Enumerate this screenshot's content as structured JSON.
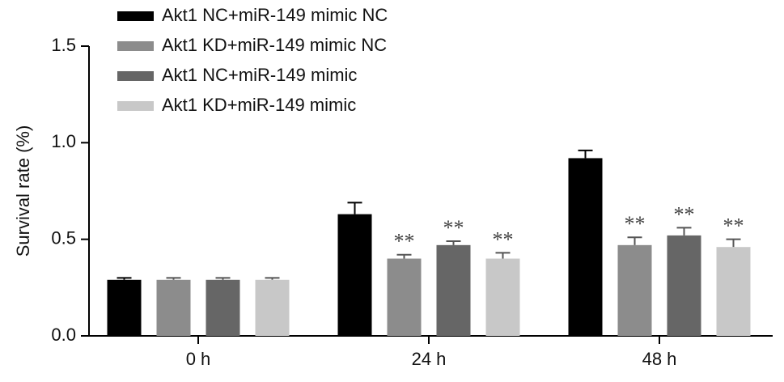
{
  "chart_data": {
    "type": "bar",
    "y_label": "Survival rate (%)",
    "categories": [
      "0 h",
      "24 h",
      "48 h"
    ],
    "ylim": [
      0,
      1.5
    ],
    "yticks": [
      {
        "value": 0,
        "label": "0.0"
      },
      {
        "value": 0.5,
        "label": "0.5"
      },
      {
        "value": 1,
        "label": "1.0"
      },
      {
        "value": 1.5,
        "label": "1.5"
      }
    ],
    "series": [
      {
        "name": "Akt1 NC+miR-149 mimic NC",
        "color": "#000000",
        "values": [
          0.29,
          0.63,
          0.92
        ],
        "errors": [
          0.01,
          0.06,
          0.04
        ],
        "annotations": [
          null,
          null,
          null
        ]
      },
      {
        "name": "Akt1 KD+miR-149 mimic NC",
        "color": "#8c8c8c",
        "values": [
          0.29,
          0.4,
          0.47
        ],
        "errors": [
          0.01,
          0.02,
          0.04
        ],
        "annotations": [
          null,
          "**",
          "**"
        ]
      },
      {
        "name": "Akt1 NC+miR-149 mimic",
        "color": "#666666",
        "values": [
          0.29,
          0.47,
          0.52
        ],
        "errors": [
          0.01,
          0.02,
          0.04
        ],
        "annotations": [
          null,
          "**",
          "**"
        ]
      },
      {
        "name": "Akt1 KD+miR-149 mimic",
        "color": "#c8c8c8",
        "values": [
          0.29,
          0.4,
          0.46
        ],
        "errors": [
          0.01,
          0.03,
          0.04
        ],
        "annotations": [
          null,
          "**",
          "**"
        ]
      }
    ]
  }
}
